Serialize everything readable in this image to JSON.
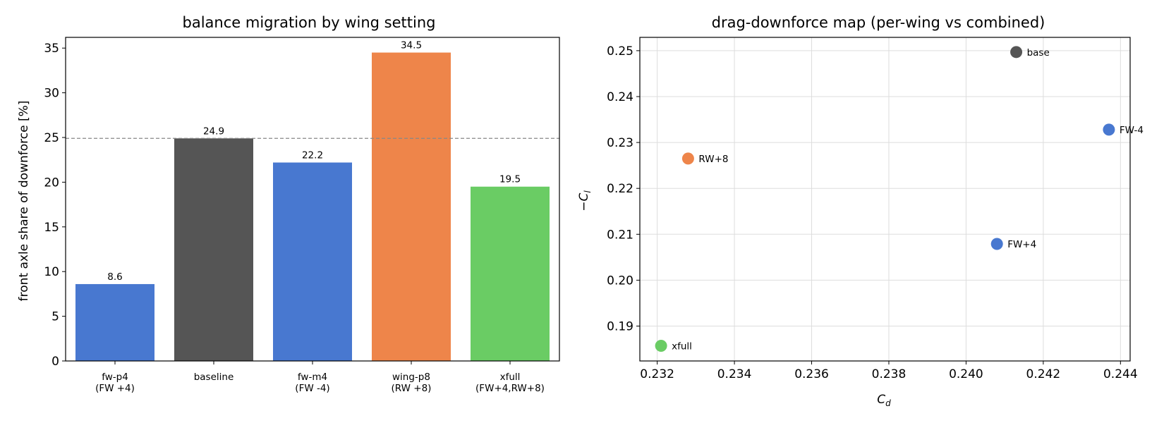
{
  "chart_data": [
    {
      "type": "bar",
      "title": "balance migration by wing setting",
      "xlabel": "",
      "ylabel": "front axle share of downforce [%]",
      "categories": [
        [
          "fw-p4",
          "(FW +4)"
        ],
        [
          "baseline"
        ],
        [
          "fw-m4",
          "(FW -4)"
        ],
        [
          "wing-p8",
          "(RW +8)"
        ],
        [
          "xfull",
          "(FW+4,RW+8)"
        ]
      ],
      "values": [
        8.6,
        24.9,
        22.2,
        34.5,
        19.5
      ],
      "value_labels": [
        "8.6",
        "24.9",
        "22.2",
        "34.5",
        "19.5"
      ],
      "colors": [
        "#4878d0",
        "#555555",
        "#4878d0",
        "#ee854a",
        "#6acc64"
      ],
      "reference_line": {
        "y": 24.9,
        "style": "dashed",
        "color": "#888888"
      },
      "ylim": [
        0,
        36.2
      ],
      "yticks": [
        0,
        5,
        10,
        15,
        20,
        25,
        30,
        35
      ],
      "grid": false
    },
    {
      "type": "scatter",
      "title": "drag-downforce map (per-wing vs combined)",
      "xlabel": "C_d",
      "ylabel": "−C_l",
      "points": [
        {
          "label": "base",
          "x": 0.2413,
          "y": 0.2497,
          "color": "#555555"
        },
        {
          "label": "FW-4",
          "x": 0.2437,
          "y": 0.2328,
          "color": "#4878d0"
        },
        {
          "label": "RW+8",
          "x": 0.2328,
          "y": 0.2265,
          "color": "#ee854a"
        },
        {
          "label": "FW+4",
          "x": 0.2408,
          "y": 0.2079,
          "color": "#4878d0"
        },
        {
          "label": "xfull",
          "x": 0.2321,
          "y": 0.1857,
          "color": "#6acc64"
        }
      ],
      "xlim": [
        0.23155,
        0.24425
      ],
      "ylim": [
        0.1824,
        0.2529
      ],
      "xticks": [
        0.232,
        0.234,
        0.236,
        0.238,
        0.24,
        0.242,
        0.244
      ],
      "xtick_labels": [
        "0.232",
        "0.234",
        "0.236",
        "0.238",
        "0.240",
        "0.242",
        "0.244"
      ],
      "yticks": [
        0.19,
        0.2,
        0.21,
        0.22,
        0.23,
        0.24,
        0.25
      ],
      "ytick_labels": [
        "0.19",
        "0.20",
        "0.21",
        "0.22",
        "0.23",
        "0.24",
        "0.25"
      ],
      "grid": true
    }
  ]
}
